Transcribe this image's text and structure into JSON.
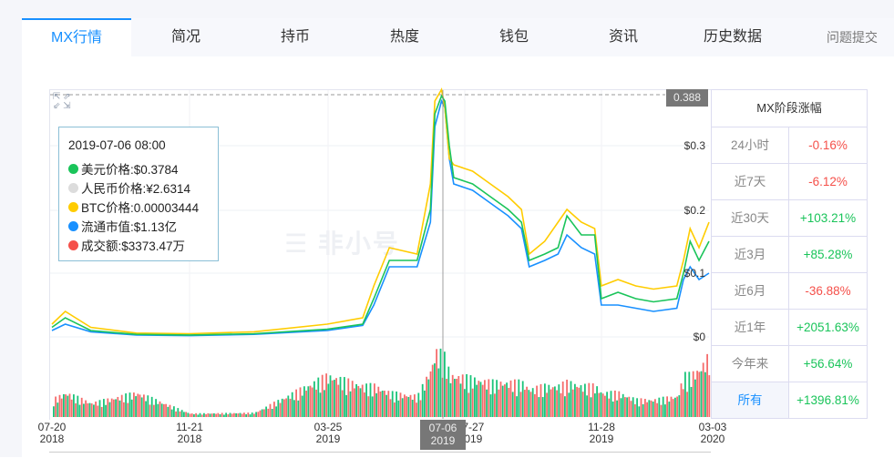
{
  "tabs": [
    {
      "label": "MX行情",
      "active": true
    },
    {
      "label": "简况"
    },
    {
      "label": "持币"
    },
    {
      "label": "热度"
    },
    {
      "label": "钱包"
    },
    {
      "label": "资讯"
    },
    {
      "label": "历史数据"
    },
    {
      "label": "问题提交"
    }
  ],
  "watermark": "非小号",
  "tooltip": {
    "datetime": "2019-07-06 08:00",
    "items": [
      {
        "label": "美元价格:$0.3784",
        "color": "#1ac45a"
      },
      {
        "label": "人民币价格:¥2.6314",
        "color": "#dcdcdc"
      },
      {
        "label": "BTC价格:0.00003444",
        "color": "#ffcc00"
      },
      {
        "label": "流通市值:$1.13亿",
        "color": "#1890ff"
      },
      {
        "label": "成交额:$3373.47万",
        "color": "#f5504a"
      }
    ]
  },
  "max_marker": "0.388",
  "chart_data": {
    "type": "line",
    "ylim": [
      0,
      0.388
    ],
    "y_ticks": [
      "$0",
      "$0.1",
      "$0.2",
      "$0.3"
    ],
    "x_ticks": [
      {
        "date": "07-20",
        "year": "2018"
      },
      {
        "date": "11-21",
        "year": "2018"
      },
      {
        "date": "03-25",
        "year": "2019"
      },
      {
        "date": "07-27",
        "year": "2019"
      },
      {
        "date": "11-28",
        "year": "2019"
      },
      {
        "date": "03-03",
        "year": "2020"
      }
    ],
    "crosshair": {
      "date": "07-06",
      "year": "2019"
    },
    "dates": [
      "2018-07-20",
      "2018-08-01",
      "2018-08-24",
      "2018-10-04",
      "2018-11-21",
      "2019-01-18",
      "2019-03-25",
      "2019-04-26",
      "2019-05-06",
      "2019-05-20",
      "2019-06-14",
      "2019-06-26",
      "2019-06-30",
      "2019-07-06",
      "2019-07-09",
      "2019-07-13",
      "2019-07-17",
      "2019-08-03",
      "2019-08-19",
      "2019-09-04",
      "2019-09-16",
      "2019-09-23",
      "2019-10-07",
      "2019-10-19",
      "2019-10-27",
      "2019-11-09",
      "2019-11-21",
      "2019-11-27",
      "2019-12-12",
      "2019-12-28",
      "2020-01-13",
      "2020-02-03",
      "2020-02-09",
      "2020-02-15",
      "2020-02-23",
      "2020-03-03"
    ],
    "series": [
      {
        "key": "usd",
        "color": "#1ac45a",
        "values": [
          0.015,
          0.03,
          0.01,
          0.004,
          0.003,
          0.005,
          0.012,
          0.02,
          0.06,
          0.12,
          0.12,
          0.2,
          0.35,
          0.378,
          0.37,
          0.3,
          0.25,
          0.24,
          0.22,
          0.2,
          0.18,
          0.12,
          0.13,
          0.14,
          0.19,
          0.16,
          0.16,
          0.06,
          0.07,
          0.06,
          0.055,
          0.06,
          0.1,
          0.15,
          0.12,
          0.15
        ]
      },
      {
        "key": "btc",
        "color": "#ffcc00",
        "values": [
          0.02,
          0.04,
          0.015,
          0.006,
          0.005,
          0.008,
          0.02,
          0.03,
          0.08,
          0.14,
          0.13,
          0.24,
          0.37,
          0.388,
          0.36,
          0.28,
          0.27,
          0.26,
          0.24,
          0.22,
          0.2,
          0.13,
          0.15,
          0.18,
          0.2,
          0.18,
          0.17,
          0.08,
          0.09,
          0.08,
          0.075,
          0.08,
          0.12,
          0.17,
          0.14,
          0.18
        ]
      },
      {
        "key": "mcap",
        "color": "#1890ff",
        "values": [
          0.01,
          0.02,
          0.008,
          0.003,
          0.002,
          0.004,
          0.01,
          0.018,
          0.05,
          0.11,
          0.11,
          0.18,
          0.33,
          0.37,
          0.36,
          0.28,
          0.24,
          0.23,
          0.21,
          0.19,
          0.17,
          0.11,
          0.12,
          0.13,
          0.16,
          0.14,
          0.13,
          0.05,
          0.05,
          0.045,
          0.04,
          0.045,
          0.09,
          0.11,
          0.09,
          0.1
        ]
      }
    ],
    "volume_relative": [
      0.25,
      0.35,
      0.2,
      0.35,
      0.05,
      0.06,
      0.6,
      0.45,
      0.45,
      0.35,
      0.3,
      0.7,
      0.95,
      0.9,
      0.85,
      0.6,
      0.6,
      0.55,
      0.5,
      0.5,
      0.5,
      0.4,
      0.45,
      0.45,
      0.5,
      0.45,
      0.45,
      0.35,
      0.35,
      0.25,
      0.25,
      0.3,
      0.6,
      0.6,
      0.7,
      0.9
    ],
    "volume_colors": {
      "up": "#1ac47a",
      "down": "#f56c6c"
    }
  },
  "stats": {
    "title": "MX阶段涨幅",
    "rows": [
      {
        "label": "24小时",
        "value": "-0.16%",
        "dir": "down"
      },
      {
        "label": "近7天",
        "value": "-6.12%",
        "dir": "down"
      },
      {
        "label": "近30天",
        "value": "+103.21%",
        "dir": "up"
      },
      {
        "label": "近3月",
        "value": "+85.28%",
        "dir": "up"
      },
      {
        "label": "近6月",
        "value": "-36.88%",
        "dir": "down"
      },
      {
        "label": "近1年",
        "value": "+2051.63%",
        "dir": "up"
      },
      {
        "label": "今年来",
        "value": "+56.64%",
        "dir": "up"
      },
      {
        "label": "所有",
        "value": "+1396.81%",
        "dir": "up",
        "selected": true
      }
    ],
    "up_color": "#1ac45a",
    "down_color": "#f5504a"
  }
}
